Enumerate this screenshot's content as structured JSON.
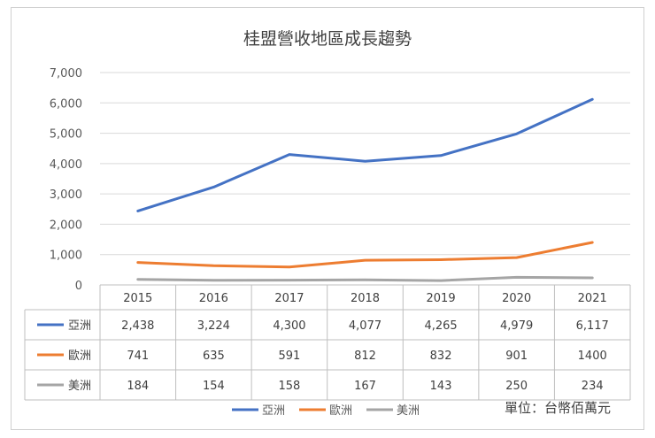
{
  "chart_data": {
    "type": "line",
    "title": "桂盟營收地區成長趨勢",
    "unit_note": "單位：台幣佰萬元",
    "categories": [
      "2015",
      "2016",
      "2017",
      "2018",
      "2019",
      "2020",
      "2021"
    ],
    "yticks": [
      "7,000",
      "6,000",
      "5,000",
      "4,000",
      "3,000",
      "2,000",
      "1,000",
      "0"
    ],
    "ylim": [
      0,
      7000
    ],
    "grid": true,
    "legend_position": "bottom",
    "series": [
      {
        "name": "亞洲",
        "color": "#4472C4",
        "values": [
          2438,
          3224,
          4300,
          4077,
          4265,
          4979,
          6117
        ],
        "labels": [
          "2,438",
          "3,224",
          "4,300",
          "4,077",
          "4,265",
          "4,979",
          "6,117"
        ]
      },
      {
        "name": "歐洲",
        "color": "#ED7D31",
        "values": [
          741,
          635,
          591,
          812,
          832,
          901,
          1400
        ],
        "labels": [
          "741",
          "635",
          "591",
          "812",
          "832",
          "901",
          "1400"
        ]
      },
      {
        "name": "美洲",
        "color": "#A5A5A5",
        "values": [
          184,
          154,
          158,
          167,
          143,
          250,
          234
        ],
        "labels": [
          "184",
          "154",
          "158",
          "167",
          "143",
          "250",
          "234"
        ]
      }
    ]
  }
}
